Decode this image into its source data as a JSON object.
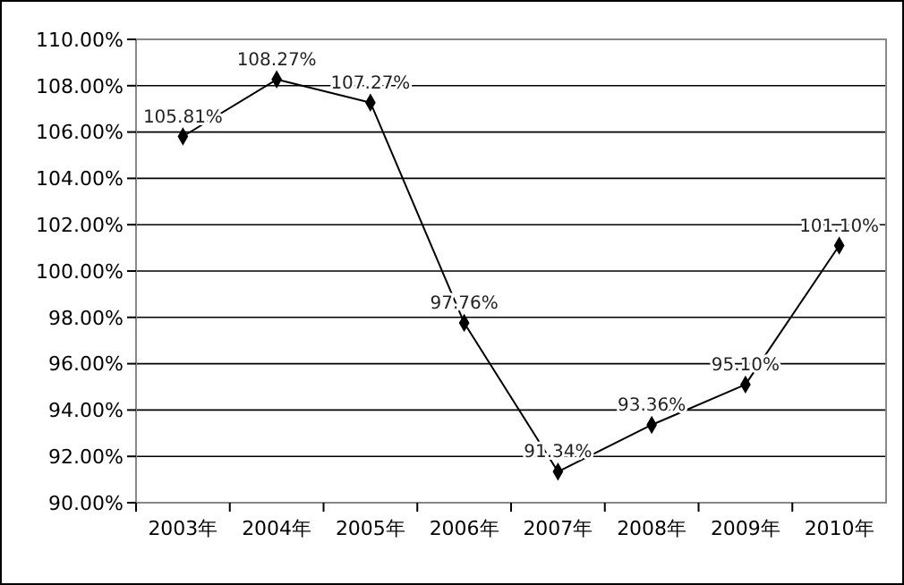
{
  "chart_data": {
    "type": "line",
    "categories": [
      "2003年",
      "2004年",
      "2005年",
      "2006年",
      "2007年",
      "2008年",
      "2009年",
      "2010年"
    ],
    "series": [
      {
        "color": "#000000",
        "values": [
          105.81,
          108.27,
          107.27,
          97.76,
          91.34,
          93.36,
          95.1,
          101.1
        ],
        "value_labels": [
          "105.81%",
          "108.27%",
          "107.27%",
          "97.76%",
          "91.34%",
          "93.36%",
          "95.10%",
          "101.10%"
        ]
      }
    ],
    "ylim": [
      90,
      110
    ],
    "yticks": [
      {
        "value": 90,
        "label": "90.00%"
      },
      {
        "value": 92,
        "label": "92.00%"
      },
      {
        "value": 94,
        "label": "94.00%"
      },
      {
        "value": 96,
        "label": "96.00%"
      },
      {
        "value": 98,
        "label": "98.00%"
      },
      {
        "value": 100,
        "label": "100.00%"
      },
      {
        "value": 102,
        "label": "102.00%"
      },
      {
        "value": 104,
        "label": "104.00%"
      },
      {
        "value": 106,
        "label": "106.00%"
      },
      {
        "value": 108,
        "label": "108.00%"
      },
      {
        "value": 110,
        "label": "110.00%"
      }
    ],
    "grid": "y",
    "marker": "diamond",
    "line_style": "solid"
  }
}
